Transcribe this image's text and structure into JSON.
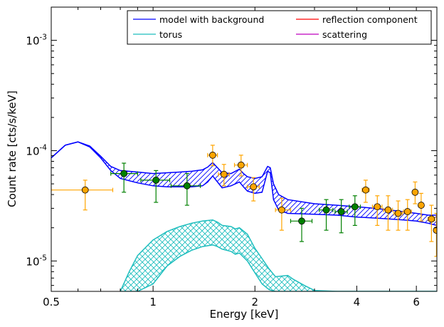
{
  "chart_data": {
    "type": "scatter",
    "xlabel": "Energy [keV]",
    "ylabel": "Count rate [cts/s/keV]",
    "x_scale": "log",
    "y_scale": "log",
    "xlim": [
      0.5,
      6.9
    ],
    "ylim": [
      5.3e-06,
      0.002
    ],
    "x_ticks": [
      {
        "value": 0.5,
        "label": "0.5"
      },
      {
        "value": 1,
        "label": "1"
      },
      {
        "value": 2,
        "label": "2"
      },
      {
        "value": 4,
        "label": "4"
      },
      {
        "value": 6,
        "label": "6"
      }
    ],
    "y_ticks": [
      {
        "value": 1e-05,
        "base": "10",
        "exp": "-5"
      },
      {
        "value": 0.0001,
        "base": "10",
        "exp": "-4"
      },
      {
        "value": 0.001,
        "base": "10",
        "exp": "-3"
      }
    ],
    "grid": false,
    "legend_position": "top-right",
    "legend": [
      {
        "label": "model with background",
        "color": "#0000ff"
      },
      {
        "label": "reflection component",
        "color": "#ff0000"
      },
      {
        "label": "torus",
        "color": "#1ebebe"
      },
      {
        "label": "scattering",
        "color": "#bf00bf"
      }
    ],
    "colors": {
      "model": "#0000ff",
      "torus": "#1ebebe",
      "orange_points": "#ffa500",
      "green_points": "#008000"
    },
    "model_band": {
      "color": "#0000ff",
      "x": [
        0.5,
        0.55,
        0.6,
        0.65,
        0.7,
        0.75,
        0.8,
        0.9,
        1.0,
        1.1,
        1.2,
        1.3,
        1.4,
        1.45,
        1.5,
        1.55,
        1.6,
        1.7,
        1.8,
        1.85,
        1.9,
        2.0,
        2.1,
        2.18,
        2.22,
        2.27,
        2.35,
        2.5,
        3.0,
        3.5,
        4.0,
        4.5,
        5.0,
        5.5,
        6.0,
        6.5,
        6.9
      ],
      "upper": [
        8.6e-05,
        0.000112,
        0.00012,
        0.00011,
        8.9e-05,
        7.2e-05,
        6.6e-05,
        6.4e-05,
        6.2e-05,
        6.3e-05,
        6.4e-05,
        6.5e-05,
        6.7e-05,
        7.1e-05,
        7.8e-05,
        7e-05,
        6.3e-05,
        6.2e-05,
        6.8e-05,
        6.2e-05,
        5.8e-05,
        5.6e-05,
        5.8e-05,
        7.2e-05,
        7e-05,
        5e-05,
        4e-05,
        3.6e-05,
        3.3e-05,
        3.2e-05,
        3.1e-05,
        3e-05,
        2.9e-05,
        2.8e-05,
        2.7e-05,
        2.6e-05,
        2.6e-05
      ],
      "lower": [
        8.6e-05,
        0.000112,
        0.00012,
        0.000108,
        8.6e-05,
        6.6e-05,
        5.6e-05,
        5.1e-05,
        4.8e-05,
        4.7e-05,
        4.7e-05,
        4.7e-05,
        4.8e-05,
        5.2e-05,
        5.9e-05,
        5.2e-05,
        4.6e-05,
        4.8e-05,
        5.2e-05,
        4.7e-05,
        4.3e-05,
        4.1e-05,
        4.2e-05,
        6.5e-05,
        6.3e-05,
        3.6e-05,
        2.9e-05,
        2.7e-05,
        2.65e-05,
        2.6e-05,
        2.5e-05,
        2.45e-05,
        2.4e-05,
        2.35e-05,
        2.3e-05,
        2.2e-05,
        2.1e-05
      ]
    },
    "torus_band": {
      "color": "#1ebebe",
      "x": [
        0.8,
        0.85,
        0.9,
        1.0,
        1.1,
        1.2,
        1.3,
        1.4,
        1.5,
        1.55,
        1.6,
        1.7,
        1.75,
        1.8,
        1.9,
        2.0,
        2.1,
        2.2,
        2.3,
        2.4,
        2.5,
        2.6,
        2.8,
        3.0,
        3.5,
        4.0,
        4.5,
        5.0,
        6.0,
        6.9
      ],
      "upper": [
        5.3e-06,
        8e-06,
        1.12e-05,
        1.55e-05,
        1.85e-05,
        2.05e-05,
        2.2e-05,
        2.3e-05,
        2.35e-05,
        2.25e-05,
        2.1e-05,
        2.05e-05,
        1.95e-05,
        2e-05,
        1.75e-05,
        1.3e-05,
        1.05e-05,
        8.5e-06,
        7.2e-06,
        7.3e-06,
        7.4e-06,
        6.8e-06,
        6e-06,
        5.4e-06,
        5.3e-06,
        5.3e-06,
        5.3e-06,
        5.3e-06,
        5.3e-06,
        5.3e-06
      ],
      "lower": [
        5.3e-06,
        5.3e-06,
        5.3e-06,
        6.2e-06,
        9e-06,
        1.1e-05,
        1.25e-05,
        1.35e-05,
        1.4e-05,
        1.35e-05,
        1.28e-05,
        1.22e-05,
        1.15e-05,
        1.18e-05,
        1e-05,
        7.8e-06,
        6.2e-06,
        5.5e-06,
        5.3e-06,
        5.3e-06,
        5.3e-06,
        5.3e-06,
        5.3e-06,
        5.3e-06,
        5.3e-06,
        5.3e-06,
        5.3e-06,
        5.3e-06,
        5.3e-06,
        5.3e-06
      ]
    },
    "series": [
      {
        "color": "#ffa500",
        "points": [
          {
            "x": 0.63,
            "y": 4.4e-05,
            "xerr": [
              0.5,
              0.76
            ],
            "yerr": [
              2.9e-05,
              5.4e-05
            ]
          },
          {
            "x": 1.5,
            "y": 9.1e-05,
            "xerr": [
              1.45,
              1.55
            ],
            "yerr": [
              7.3e-05,
              0.000112
            ]
          },
          {
            "x": 1.62,
            "y": 6.1e-05,
            "xerr": [
              1.56,
              1.68
            ],
            "yerr": [
              4.8e-05,
              7.5e-05
            ]
          },
          {
            "x": 1.82,
            "y": 7.4e-05,
            "xerr": [
              1.74,
              1.9
            ],
            "yerr": [
              5.9e-05,
              9.1e-05
            ]
          },
          {
            "x": 1.98,
            "y": 4.7e-05,
            "xerr": [
              1.9,
              2.06
            ],
            "yerr": [
              3.5e-05,
              5.7e-05
            ]
          },
          {
            "x": 2.4,
            "y": 2.9e-05,
            "xerr": [
              2.3,
              2.55
            ],
            "yerr": [
              1.9e-05,
              3.7e-05
            ]
          },
          {
            "x": 4.25,
            "y": 4.4e-05,
            "xerr": [
              4.15,
              4.35
            ],
            "yerr": [
              3.4e-05,
              5.4e-05
            ]
          },
          {
            "x": 4.6,
            "y": 3.1e-05,
            "xerr": [
              4.45,
              4.75
            ],
            "yerr": [
              2.1e-05,
              3.9e-05
            ]
          },
          {
            "x": 4.95,
            "y": 2.9e-05,
            "xerr": [
              4.8,
              5.1
            ],
            "yerr": [
              1.9e-05,
              3.9e-05
            ]
          },
          {
            "x": 5.3,
            "y": 2.7e-05,
            "xerr": [
              5.15,
              5.45
            ],
            "yerr": [
              1.9e-05,
              3.5e-05
            ]
          },
          {
            "x": 5.65,
            "y": 2.8e-05,
            "xerr": [
              5.5,
              5.8
            ],
            "yerr": [
              1.9e-05,
              3.6e-05
            ]
          },
          {
            "x": 5.95,
            "y": 4.2e-05,
            "xerr": [
              5.85,
              6.05
            ],
            "yerr": [
              3.3e-05,
              5.2e-05
            ]
          },
          {
            "x": 6.2,
            "y": 3.2e-05,
            "xerr": [
              6.1,
              6.3
            ],
            "yerr": [
              2.3e-05,
              4.1e-05
            ]
          },
          {
            "x": 6.65,
            "y": 2.4e-05,
            "xerr": [
              6.5,
              6.8
            ],
            "yerr": [
              1.5e-05,
              3.2e-05
            ]
          },
          {
            "x": 6.88,
            "y": 1.9e-05,
            "xerr": [
              6.8,
              6.9
            ],
            "yerr": [
              1.1e-05,
              2.7e-05
            ]
          }
        ]
      },
      {
        "color": "#008000",
        "points": [
          {
            "x": 0.82,
            "y": 6.2e-05,
            "xerr": [
              0.75,
              0.9
            ],
            "yerr": [
              4.2e-05,
              7.7e-05
            ]
          },
          {
            "x": 1.02,
            "y": 5.4e-05,
            "xerr": [
              0.92,
              1.12
            ],
            "yerr": [
              3.4e-05,
              6.6e-05
            ]
          },
          {
            "x": 1.26,
            "y": 4.8e-05,
            "xerr": [
              1.13,
              1.38
            ],
            "yerr": [
              3.2e-05,
              6.2e-05
            ]
          },
          {
            "x": 2.75,
            "y": 2.3e-05,
            "xerr": [
              2.55,
              2.95
            ],
            "yerr": [
              1.5e-05,
              3e-05
            ]
          },
          {
            "x": 3.25,
            "y": 2.9e-05,
            "xerr": [
              3.1,
              3.4
            ],
            "yerr": [
              1.9e-05,
              3.6e-05
            ]
          },
          {
            "x": 3.6,
            "y": 2.8e-05,
            "xerr": [
              3.45,
              3.75
            ],
            "yerr": [
              1.8e-05,
              3.6e-05
            ]
          },
          {
            "x": 3.95,
            "y": 3.1e-05,
            "xerr": [
              3.8,
              4.1
            ],
            "yerr": [
              2.1e-05,
              3.9e-05
            ]
          }
        ]
      }
    ]
  }
}
